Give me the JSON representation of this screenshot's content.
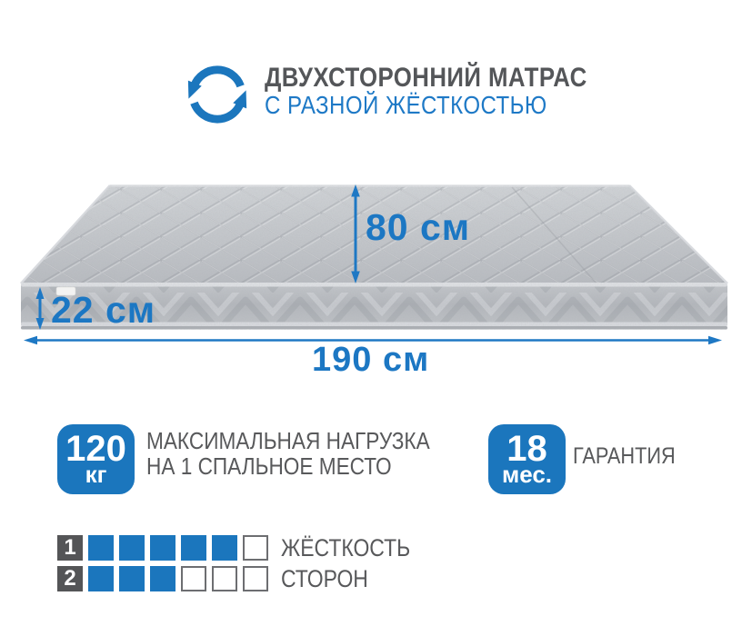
{
  "colors": {
    "blue": "#1b76bd",
    "blue_arrow": "#1e78c4",
    "blue_dim_text": "#1c77c3",
    "gray_text": "#58595b",
    "dark_cell": "#545557",
    "mattress_gray": "#c4c7cb"
  },
  "header": {
    "icon": "rotate-arrows-icon",
    "title": "ДВУХСТОРОННИЙ МАТРАС",
    "subtitle": "С РАЗНОЙ ЖЁСТКОСТЬЮ"
  },
  "dimensions": {
    "depth": "80 см",
    "height": "22 см",
    "length": "190 см"
  },
  "badges": [
    {
      "value": "120",
      "unit": "кг",
      "label_line1": "МАКСИМАЛЬНАЯ НАГРУЗКА",
      "label_line2": "НА 1 СПАЛЬНОЕ МЕСТО"
    },
    {
      "value": "18",
      "unit": "мес.",
      "label_line1": "ГАРАНТИЯ"
    }
  ],
  "firmness": {
    "label_line1": "ЖЁСТКОСТЬ",
    "label_line2": "СТОРОН",
    "scale_max": 6,
    "rows": [
      {
        "index": "1",
        "filled": 5
      },
      {
        "index": "2",
        "filled": 3
      }
    ]
  }
}
